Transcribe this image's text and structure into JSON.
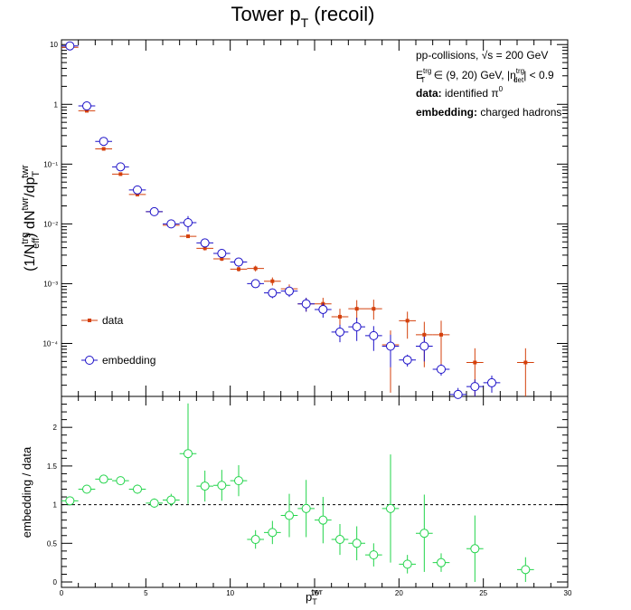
{
  "chart_data": [
    {
      "type": "scatter",
      "title": "Tower p_T (recoil)",
      "title_main": "Tower p",
      "title_sub": "T",
      "title_rest": " (recoil)",
      "ylabel_parts": {
        "p1": "(1/N",
        "sup1": "trg",
        "sub1": "eff",
        "p2": ") dN",
        "sup2": "twr",
        "p3": "/dp",
        "sub3": "T",
        "sup3": "twr"
      },
      "yscale": "log",
      "ylim": [
        1.3e-05,
        12
      ],
      "xlim": [
        0,
        30
      ],
      "yticks": [
        {
          "value": 10,
          "label": "10"
        },
        {
          "value": 1,
          "label": "1"
        },
        {
          "value": 0.1,
          "label": "10⁻¹"
        },
        {
          "value": 0.01,
          "label": "10⁻²"
        },
        {
          "value": 0.001,
          "label": "10⁻³"
        },
        {
          "value": 0.0001,
          "label": "10⁻⁴"
        }
      ],
      "annotations": {
        "line1": "pp-collisions, √s = 200 GeV",
        "line2_a": "E",
        "line2_sup": "trg",
        "line2_sub": "T",
        "line2_b": " ∈ (9, 20) GeV, |η",
        "line2_sup2": "trg",
        "line2_sub2": "det",
        "line2_c": "| < 0.9",
        "line3_bold": "data:",
        "line3_rest": " identified π",
        "line3_sup": "0",
        "line4_bold": "embedding:",
        "line4_rest": " charged hadrons"
      },
      "legend_placement": "bottom-left",
      "series": [
        {
          "name": "data",
          "color": "#d4400c",
          "marker": "filled-square",
          "x": [
            0.5,
            1.5,
            2.5,
            3.5,
            4.5,
            5.5,
            6.5,
            7.5,
            8.5,
            9.5,
            10.5,
            11.5,
            12.5,
            13.5,
            14.5,
            15.5,
            16.5,
            17.5,
            18.5,
            19.5,
            20.5,
            21.5,
            22.5,
            24.5,
            27.5
          ],
          "y": [
            9.0,
            0.78,
            0.18,
            0.068,
            0.031,
            0.016,
            0.0095,
            0.0062,
            0.0039,
            0.0026,
            0.00175,
            0.0018,
            0.0011,
            0.00082,
            0.00046,
            0.00046,
            0.00028,
            0.00038,
            0.00038,
            9.5e-05,
            0.00024,
            0.00014,
            0.00014,
            4.8e-05,
            4.8e-05
          ],
          "yerr_low": [
            0.2,
            0.02,
            0.005,
            0.002,
            0.001,
            0.0005,
            0.0004,
            0.0004,
            0.0003,
            0.0002,
            0.00015,
            0.0002,
            0.00017,
            0.00015,
            0.00012,
            0.00012,
            0.0001,
            0.00013,
            0.00013,
            8e-05,
            0.00012,
            0.0001,
            0.0001,
            3.8e-05,
            3.8e-05
          ],
          "yerr_high": [
            0.2,
            0.02,
            0.005,
            0.002,
            0.001,
            0.0005,
            0.0004,
            0.0004,
            0.0003,
            0.0002,
            0.00015,
            0.0002,
            0.00017,
            0.00015,
            0.00012,
            0.00012,
            0.0001,
            0.00015,
            0.00016,
            7e-05,
            0.0001,
            9e-05,
            0.0001,
            3.5e-05,
            3.5e-05
          ]
        },
        {
          "name": "embedding",
          "color": "#1c10c8",
          "marker": "open-circle",
          "x": [
            0.5,
            1.5,
            2.5,
            3.5,
            4.5,
            5.5,
            6.5,
            7.5,
            8.5,
            9.5,
            10.5,
            11.5,
            12.5,
            13.5,
            14.5,
            15.5,
            16.5,
            17.5,
            18.5,
            19.5,
            20.5,
            21.5,
            22.5,
            23.5,
            24.5,
            25.5
          ],
          "y": [
            9.5,
            0.94,
            0.24,
            0.09,
            0.037,
            0.016,
            0.01,
            0.0105,
            0.0048,
            0.0032,
            0.0023,
            0.001,
            0.0007,
            0.00075,
            0.00046,
            0.00037,
            0.000155,
            0.00019,
            0.000135,
            9e-05,
            5.3e-05,
            9e-05,
            3.7e-05,
            1.4e-05,
            1.9e-05,
            2.2e-05
          ],
          "yerr_low": [
            0.1,
            0.02,
            0.006,
            0.003,
            0.0015,
            0.0008,
            0.0008,
            0.003,
            0.0008,
            0.0005,
            0.0004,
            0.00015,
            0.00013,
            0.00015,
            0.00012,
            0.0001,
            5e-05,
            8e-05,
            6e-05,
            5e-05,
            1.2e-05,
            4e-05,
            8e-06,
            4e-06,
            6e-06,
            7e-06
          ],
          "yerr_high": [
            0.1,
            0.02,
            0.006,
            0.003,
            0.0015,
            0.0008,
            0.0008,
            0.003,
            0.0008,
            0.0005,
            0.0004,
            0.00015,
            0.00013,
            0.00015,
            0.00012,
            0.0001,
            5e-05,
            8e-05,
            6e-05,
            5e-05,
            1.2e-05,
            4e-05,
            8e-06,
            4e-06,
            6e-06,
            7e-06
          ]
        }
      ]
    },
    {
      "type": "scatter",
      "xlabel_main": "p",
      "xlabel_sub": "T",
      "xlabel_sup": "twr",
      "ylabel": "embedding / data",
      "xlim": [
        0,
        30
      ],
      "ylim": [
        -0.07,
        2.4
      ],
      "xticks": [
        0,
        5,
        10,
        15,
        20,
        25,
        30
      ],
      "yticks": [
        0,
        0.5,
        1,
        1.5,
        2
      ],
      "reference_line": 1,
      "series": [
        {
          "name": "ratio",
          "color": "#22d44a",
          "marker": "open-circle",
          "x": [
            0.5,
            1.5,
            2.5,
            3.5,
            4.5,
            5.5,
            6.5,
            7.5,
            8.5,
            9.5,
            10.5,
            11.5,
            12.5,
            13.5,
            14.5,
            15.5,
            16.5,
            17.5,
            18.5,
            19.5,
            20.5,
            21.5,
            22.5,
            24.5,
            27.5
          ],
          "y": [
            1.05,
            1.2,
            1.33,
            1.31,
            1.2,
            1.02,
            1.06,
            1.66,
            1.24,
            1.25,
            1.31,
            0.55,
            0.64,
            0.86,
            0.95,
            0.8,
            0.55,
            0.5,
            0.35,
            0.95,
            0.23,
            0.63,
            0.25,
            0.43,
            0.16
          ],
          "yerr": [
            0.03,
            0.04,
            0.04,
            0.05,
            0.06,
            0.06,
            0.08,
            0.65,
            0.2,
            0.2,
            0.2,
            0.12,
            0.15,
            0.28,
            0.37,
            0.3,
            0.2,
            0.22,
            0.15,
            0.7,
            0.12,
            0.5,
            0.12,
            0.43,
            0.16
          ]
        }
      ]
    }
  ]
}
